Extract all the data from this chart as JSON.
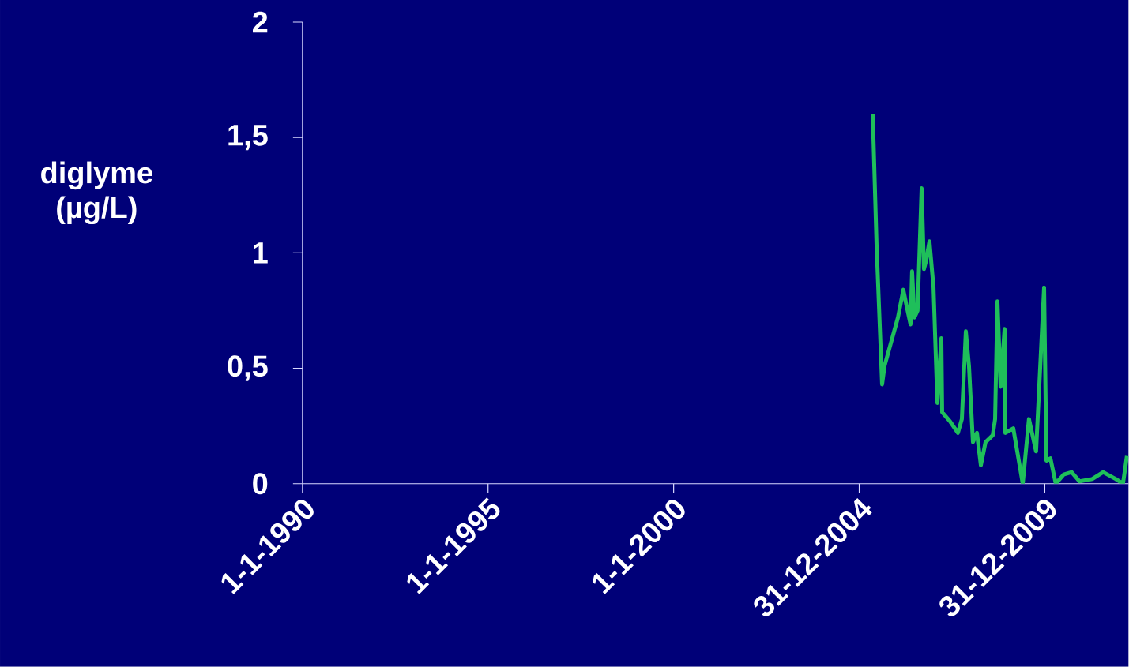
{
  "chart_data": {
    "type": "line",
    "ylabel": "diglyme (µg/L)",
    "x": [
      "2005-05-13",
      "2005-06-20",
      "2005-08-13",
      "2005-09-06",
      "2006-01-16",
      "2006-03-10",
      "2006-04-11",
      "2006-05-20",
      "2006-06-04",
      "2006-06-27",
      "2006-07-28",
      "2006-09-06",
      "2006-09-29",
      "2006-10-22",
      "2006-11-22",
      "2007-01-01",
      "2007-02-08",
      "2007-03-19",
      "2007-03-27",
      "2007-06-13",
      "2007-08-29",
      "2007-10-07",
      "2007-11-15",
      "2007-12-16",
      "2008-01-24",
      "2008-03-03",
      "2008-04-11",
      "2008-05-27",
      "2008-08-06",
      "2008-08-29",
      "2008-09-21",
      "2008-10-22",
      "2008-11-30",
      "2008-12-08",
      "2009-02-24",
      "2009-05-28",
      "2009-07-28",
      "2009-10-06",
      "2009-12-24",
      "2010-01-16",
      "2010-02-24",
      "2010-04-18",
      "2010-07-05",
      "2010-09-21",
      "2010-12-08",
      "2011-04-11",
      "2011-07-28",
      "2011-11-30",
      "2012-02-08",
      "2012-03-18"
    ],
    "values": [
      1.6,
      1.03,
      0.43,
      0.51,
      0.72,
      0.84,
      0.77,
      0.69,
      0.92,
      0.72,
      0.75,
      1.28,
      0.93,
      0.97,
      1.05,
      0.85,
      0.35,
      0.63,
      0.31,
      0.27,
      0.22,
      0.28,
      0.66,
      0.51,
      0.18,
      0.22,
      0.08,
      0.18,
      0.21,
      0.28,
      0.79,
      0.42,
      0.67,
      0.22,
      0.24,
      0.0,
      0.28,
      0.14,
      0.85,
      0.1,
      0.11,
      0.0,
      0.04,
      0.05,
      0.01,
      0.02,
      0.05,
      0.02,
      0.0,
      0.12
    ],
    "color": "#1fbf5a",
    "xlim": [
      "1990-01-01",
      "2012-04-03"
    ],
    "xticks": [
      {
        "value": "1990-01-01",
        "label": "1-1-1990"
      },
      {
        "value": "1995-01-01",
        "label": "1-1-1995"
      },
      {
        "value": "2000-01-01",
        "label": "1-1-2000"
      },
      {
        "value": "2004-12-31",
        "label": "31-12-2004"
      },
      {
        "value": "2009-12-31",
        "label": "31-12-2009"
      }
    ],
    "ylim": [
      0,
      2
    ],
    "yticks": [
      0,
      {
        "value": 0.5,
        "label": "0,5"
      },
      1,
      {
        "value": 1.5,
        "label": "1,5"
      },
      2
    ]
  }
}
